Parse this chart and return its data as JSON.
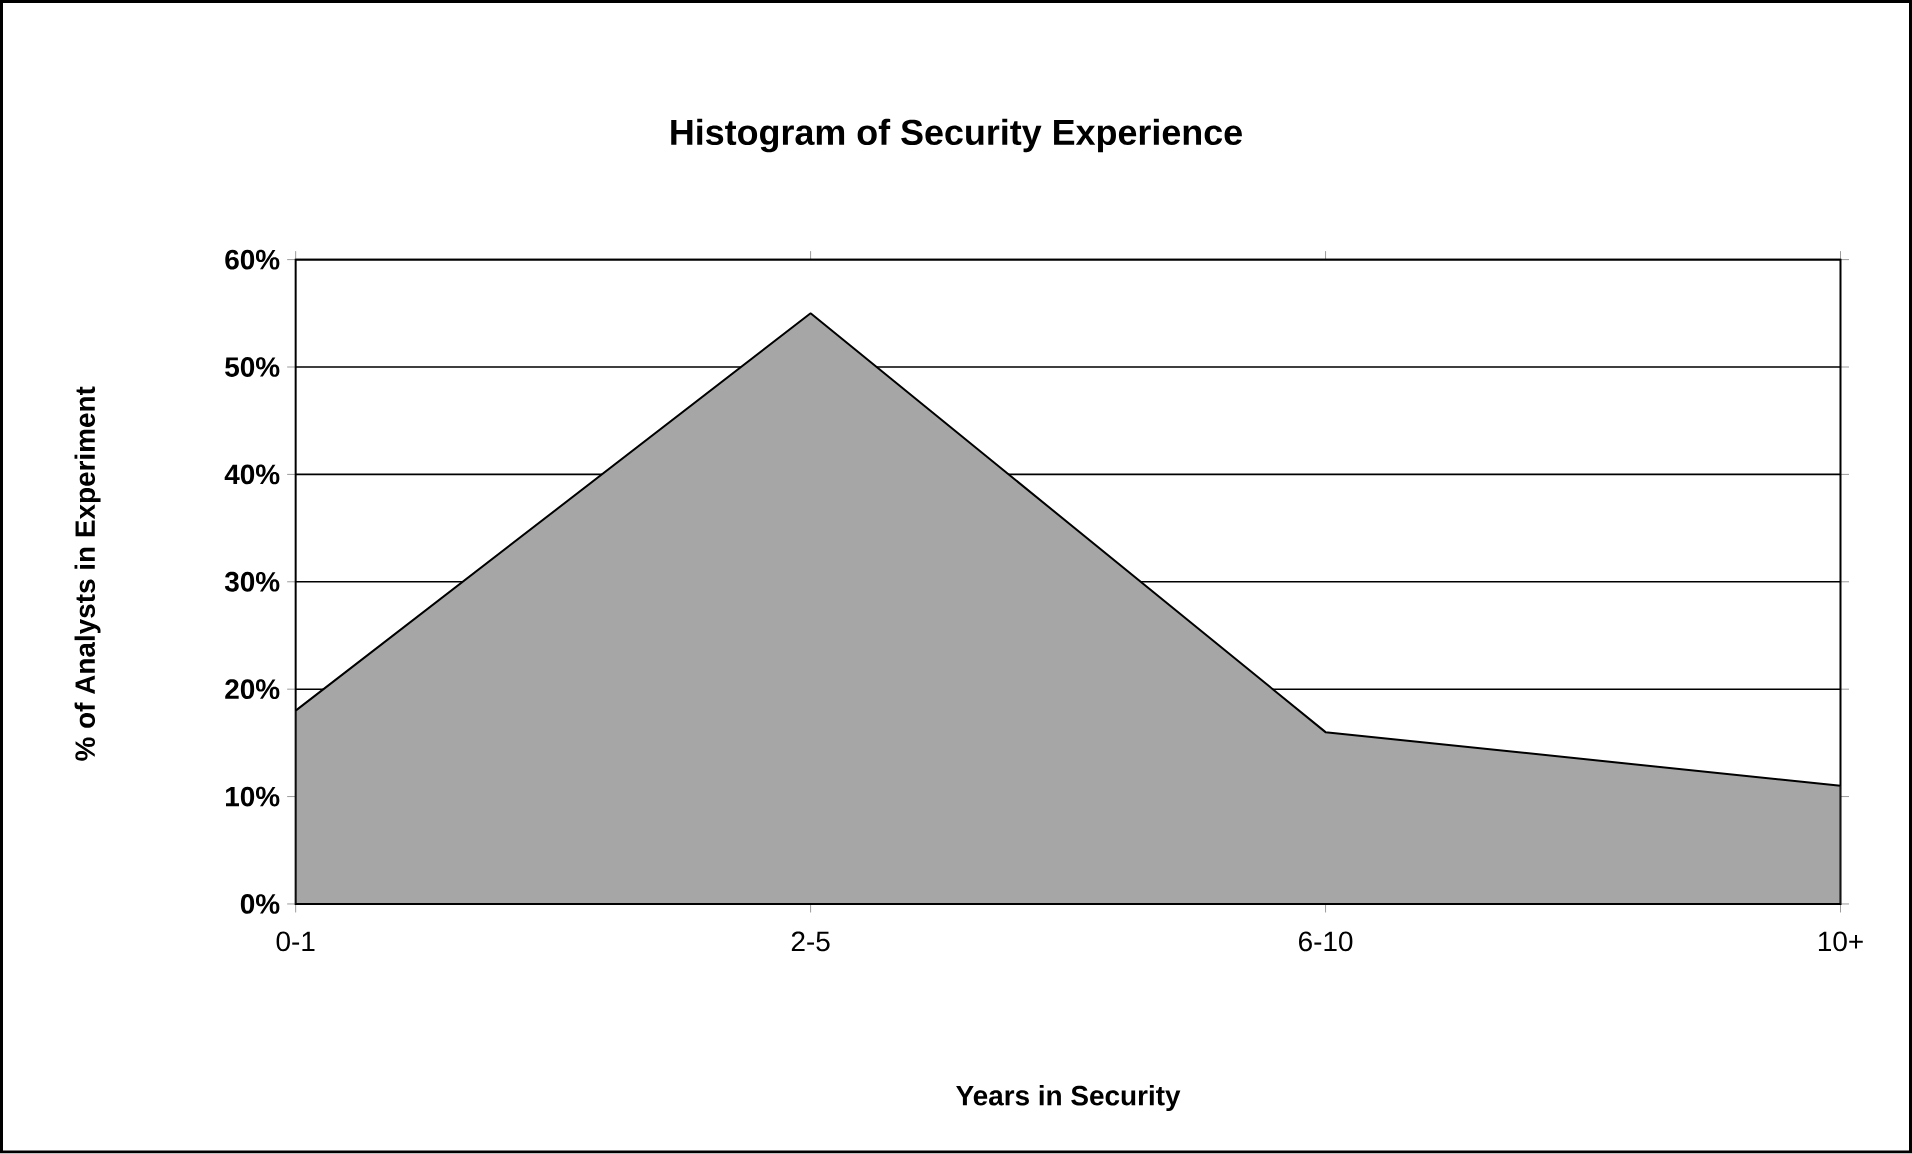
{
  "chart_data": {
    "type": "area",
    "title": "Histogram of Security Experience",
    "xlabel": "Years in Security",
    "ylabel": "% of Analysts in Experiment",
    "categories": [
      "0-1",
      "2-5",
      "6-10",
      "10+"
    ],
    "values": [
      18,
      55,
      16,
      11
    ],
    "color": "#a6a6a6",
    "ylim": [
      0,
      60
    ],
    "yticks": [
      {
        "value": 0,
        "label": "0%"
      },
      {
        "value": 10,
        "label": "10%"
      },
      {
        "value": 20,
        "label": "20%"
      },
      {
        "value": 30,
        "label": "30%"
      },
      {
        "value": 40,
        "label": "40%"
      },
      {
        "value": 50,
        "label": "50%"
      },
      {
        "value": 60,
        "label": "60%"
      }
    ],
    "grid": "y"
  }
}
